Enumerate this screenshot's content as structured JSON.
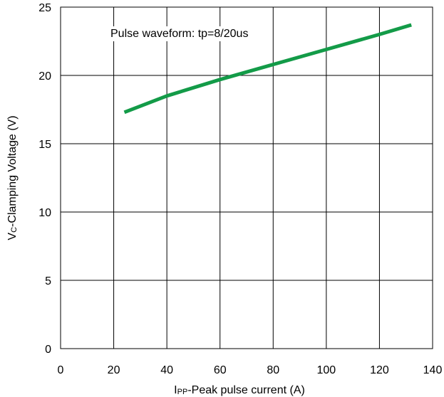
{
  "chart_data": {
    "type": "line",
    "annotation": "Pulse waveform: tp=8/20us",
    "xlabel": {
      "main": "I",
      "sub": "PP",
      "rest": "-Peak pulse current (A)"
    },
    "ylabel": {
      "main": "V",
      "sub": "C",
      "rest": "-Clamping Voltage (V)"
    },
    "xlim": [
      0,
      140
    ],
    "ylim": [
      0,
      25
    ],
    "xticks": [
      0,
      20,
      40,
      60,
      80,
      100,
      120,
      140
    ],
    "yticks": [
      0,
      5,
      10,
      15,
      20,
      25
    ],
    "grid": true,
    "series": [
      {
        "color": "#139B48",
        "x": [
          24,
          40,
          60,
          80,
          100,
          120,
          132
        ],
        "y": [
          17.3,
          18.5,
          19.7,
          20.8,
          21.9,
          23.0,
          23.7
        ]
      }
    ]
  }
}
